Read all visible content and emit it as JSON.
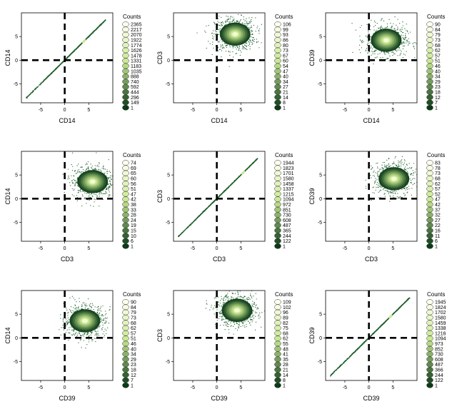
{
  "legend_title": "Counts",
  "colors": {
    "low": "#ffffee",
    "mid": "#c8e890",
    "high": "#0b3b17",
    "point": "#1d5e2a",
    "axis": "#000000"
  },
  "chart_data": [
    {
      "type": "heatmap",
      "shape": "diagonal",
      "xlabel": "CD14",
      "ylabel": "CD14",
      "xlim": [
        -9,
        10
      ],
      "ylim": [
        -9,
        10
      ],
      "xticks": [
        -5,
        0,
        5
      ],
      "yticks": [
        -5,
        0,
        5
      ],
      "gate": [
        0,
        0
      ],
      "hotspot": [
        4,
        4
      ],
      "legend": [
        "2365",
        "2217",
        "2070",
        "1922",
        "1774",
        "1626",
        "1478",
        "1331",
        "1183",
        "1035",
        "888",
        "740",
        "592",
        "444",
        "296",
        "149",
        "1"
      ]
    },
    {
      "type": "heatmap",
      "shape": "cloud",
      "xlabel": "CD14",
      "ylabel": "CD3",
      "xlim": [
        -9,
        10
      ],
      "ylim": [
        -9,
        10
      ],
      "xticks": [
        -5,
        0,
        5
      ],
      "yticks": [
        -5,
        0,
        5
      ],
      "gate": [
        0,
        0
      ],
      "hotspot": [
        3.8,
        5.5
      ],
      "legend": [
        "106",
        "99",
        "93",
        "86",
        "80",
        "73",
        "67",
        "60",
        "54",
        "47",
        "40",
        "34",
        "27",
        "21",
        "14",
        "8",
        "1"
      ]
    },
    {
      "type": "heatmap",
      "shape": "cloud",
      "xlabel": "CD14",
      "ylabel": "CD39",
      "xlim": [
        -9,
        10
      ],
      "ylim": [
        -9,
        10
      ],
      "xticks": [
        -5,
        0,
        5
      ],
      "yticks": [
        -5,
        0,
        5
      ],
      "gate": [
        0,
        0
      ],
      "hotspot": [
        3.6,
        4.2
      ],
      "legend": [
        "90",
        "84",
        "79",
        "73",
        "68",
        "62",
        "57",
        "51",
        "46",
        "40",
        "34",
        "29",
        "23",
        "18",
        "12",
        "7",
        "1"
      ]
    },
    {
      "type": "heatmap",
      "shape": "cloud",
      "xlabel": "CD3",
      "ylabel": "CD14",
      "xlim": [
        -9,
        10
      ],
      "ylim": [
        -9,
        10
      ],
      "xticks": [
        -5,
        0,
        5
      ],
      "yticks": [
        -5,
        0,
        5
      ],
      "gate": [
        0,
        0
      ],
      "hotspot": [
        5.8,
        3.6
      ],
      "legend": [
        "74",
        "69",
        "65",
        "60",
        "56",
        "51",
        "47",
        "42",
        "38",
        "33",
        "28",
        "24",
        "19",
        "15",
        "10",
        "6",
        "1"
      ]
    },
    {
      "type": "heatmap",
      "shape": "diagonal",
      "xlabel": "CD3",
      "ylabel": "CD3",
      "xlim": [
        -9,
        10
      ],
      "ylim": [
        -9,
        10
      ],
      "xticks": [
        -5,
        0,
        5
      ],
      "yticks": [
        -5,
        0,
        5
      ],
      "gate": [
        0,
        0
      ],
      "hotspot": [
        5.5,
        5.5
      ],
      "legend": [
        "1944",
        "1823",
        "1701",
        "1580",
        "1458",
        "1337",
        "1215",
        "1094",
        "972",
        "851",
        "730",
        "608",
        "487",
        "365",
        "244",
        "122",
        "1"
      ]
    },
    {
      "type": "heatmap",
      "shape": "cloud",
      "xlabel": "CD3",
      "ylabel": "CD39",
      "xlim": [
        -9,
        10
      ],
      "ylim": [
        -9,
        10
      ],
      "xticks": [
        -5,
        0,
        5
      ],
      "yticks": [
        -5,
        0,
        5
      ],
      "gate": [
        0,
        0
      ],
      "hotspot": [
        5.2,
        4.2
      ],
      "legend": [
        "83",
        "78",
        "73",
        "68",
        "62",
        "57",
        "52",
        "47",
        "42",
        "37",
        "32",
        "27",
        "22",
        "16",
        "11",
        "6",
        "1"
      ]
    },
    {
      "type": "heatmap",
      "shape": "cloud",
      "xlabel": "CD39",
      "ylabel": "CD14",
      "xlim": [
        -9,
        10
      ],
      "ylim": [
        -9,
        10
      ],
      "xticks": [
        -5,
        0,
        5
      ],
      "yticks": [
        -5,
        0,
        5
      ],
      "gate": [
        0,
        0
      ],
      "hotspot": [
        4.2,
        3.6
      ],
      "legend": [
        "90",
        "84",
        "79",
        "73",
        "68",
        "62",
        "57",
        "51",
        "46",
        "40",
        "34",
        "29",
        "23",
        "18",
        "12",
        "7",
        "1"
      ]
    },
    {
      "type": "heatmap",
      "shape": "cloud",
      "xlabel": "CD39",
      "ylabel": "CD3",
      "xlim": [
        -9,
        10
      ],
      "ylim": [
        -9,
        10
      ],
      "xticks": [
        -5,
        0,
        5
      ],
      "yticks": [
        -5,
        0,
        5
      ],
      "gate": [
        0,
        0
      ],
      "hotspot": [
        4.2,
        5.8
      ],
      "legend": [
        "109",
        "102",
        "96",
        "89",
        "82",
        "75",
        "68",
        "62",
        "55",
        "48",
        "41",
        "35",
        "28",
        "21",
        "14",
        "8",
        "1"
      ]
    },
    {
      "type": "heatmap",
      "shape": "diagonal",
      "xlabel": "CD39",
      "ylabel": "CD39",
      "xlim": [
        -9,
        10
      ],
      "ylim": [
        -9,
        10
      ],
      "xticks": [
        -5,
        0,
        5
      ],
      "yticks": [
        -5,
        0,
        5
      ],
      "gate": [
        0,
        0
      ],
      "hotspot": [
        4.5,
        4.5
      ],
      "legend": [
        "1945",
        "1824",
        "1702",
        "1580",
        "1459",
        "1338",
        "1216",
        "1094",
        "973",
        "852",
        "730",
        "608",
        "487",
        "366",
        "244",
        "122",
        "1"
      ]
    }
  ]
}
